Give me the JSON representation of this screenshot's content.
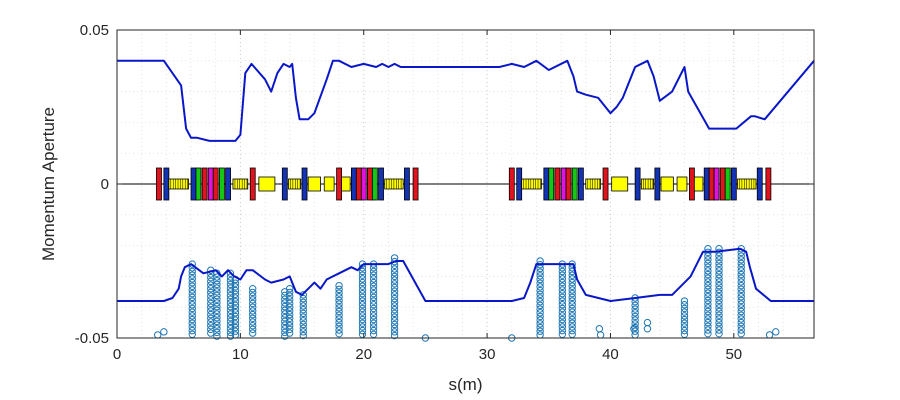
{
  "chart_data": {
    "type": "line",
    "title": "",
    "xlabel": "s(m)",
    "ylabel": "Momentum Aperture",
    "xlim": [
      0,
      56.5
    ],
    "ylim": [
      -0.05,
      0.05
    ],
    "x_ticks": [
      0,
      10,
      20,
      30,
      40,
      50
    ],
    "y_ticks": [
      -0.05,
      0,
      0.05
    ],
    "y_tick_labels": [
      "-0.05",
      "0",
      "0.05"
    ],
    "x_tick_labels": [
      "0",
      "10",
      "20",
      "30",
      "40",
      "50"
    ],
    "grid": "dotted",
    "colors": {
      "aperture_line": "#0a17c8",
      "scatter": "#1f77b4",
      "dipole": "#ffff00",
      "focusing_quad": "#e0141e",
      "defocusing_quad": "#1432b4",
      "sextupole_sf": "#14c814",
      "sextupole_sd": "#dc14dc",
      "zero_line": "#000000"
    },
    "series": [
      {
        "role": "positive-aperture",
        "x": [
          0,
          3.8,
          5.2,
          5.6,
          6.0,
          6.5,
          7.5,
          9.6,
          10.0,
          10.4,
          10.9,
          12.0,
          12.5,
          13.0,
          13.5,
          14.0,
          14.2,
          14.5,
          14.8,
          15.5,
          16.0,
          17.0,
          17.5,
          18.0,
          19.0,
          20.0,
          21.0,
          21.5,
          22.0,
          22.5,
          23.0,
          24.0,
          26.0,
          31.0,
          32.0,
          33.0,
          34.0,
          35.0,
          36.5,
          37.0,
          37.3,
          38.0,
          39.0,
          40.0,
          40.5,
          41.0,
          42.0,
          43.0,
          43.5,
          44.0,
          45.0,
          46.0,
          46.3,
          48.0,
          48.8,
          50.2,
          51.4,
          51.7,
          52.5,
          56.5
        ],
        "y": [
          0.04,
          0.04,
          0.032,
          0.018,
          0.015,
          0.015,
          0.014,
          0.014,
          0.016,
          0.036,
          0.039,
          0.034,
          0.03,
          0.036,
          0.039,
          0.038,
          0.039,
          0.028,
          0.021,
          0.021,
          0.023,
          0.034,
          0.04,
          0.04,
          0.038,
          0.039,
          0.038,
          0.039,
          0.038,
          0.039,
          0.038,
          0.038,
          0.038,
          0.038,
          0.039,
          0.038,
          0.04,
          0.037,
          0.04,
          0.035,
          0.03,
          0.029,
          0.028,
          0.023,
          0.025,
          0.028,
          0.038,
          0.04,
          0.035,
          0.027,
          0.03,
          0.038,
          0.03,
          0.018,
          0.018,
          0.018,
          0.022,
          0.022,
          0.021,
          0.04
        ]
      },
      {
        "role": "negative-aperture",
        "x": [
          0,
          3.8,
          4.5,
          5.0,
          5.2,
          5.5,
          6.0,
          7.0,
          8.0,
          8.5,
          9.0,
          9.5,
          10.0,
          10.5,
          11.0,
          12.0,
          12.5,
          13.5,
          14.0,
          14.5,
          15.0,
          16.0,
          16.5,
          17.0,
          17.5,
          18.0,
          19.0,
          19.5,
          20.0,
          22.0,
          22.6,
          23.2,
          25.0,
          32.0,
          33.0,
          33.5,
          34.0,
          37.0,
          37.3,
          38.0,
          40.0,
          42.0,
          44.0,
          45.0,
          46.5,
          47.0,
          47.5,
          48.5,
          50.5,
          51.0,
          51.3,
          51.8,
          53.0,
          56.5
        ],
        "y": [
          -0.038,
          -0.038,
          -0.037,
          -0.034,
          -0.03,
          -0.027,
          -0.026,
          -0.029,
          -0.028,
          -0.03,
          -0.028,
          -0.03,
          -0.031,
          -0.028,
          -0.028,
          -0.031,
          -0.032,
          -0.031,
          -0.03,
          -0.035,
          -0.036,
          -0.032,
          -0.034,
          -0.031,
          -0.03,
          -0.029,
          -0.027,
          -0.028,
          -0.026,
          -0.026,
          -0.025,
          -0.025,
          -0.038,
          -0.038,
          -0.037,
          -0.032,
          -0.026,
          -0.026,
          -0.031,
          -0.036,
          -0.038,
          -0.037,
          -0.036,
          -0.036,
          -0.03,
          -0.026,
          -0.022,
          -0.022,
          -0.021,
          -0.022,
          -0.027,
          -0.034,
          -0.038,
          -0.038
        ]
      }
    ],
    "scatter": {
      "columns": [
        {
          "x": 6.1,
          "y_top": -0.026
        },
        {
          "x": 7.6,
          "y_top": -0.028
        },
        {
          "x": 8.1,
          "y_top": -0.029
        },
        {
          "x": 9.2,
          "y_top": -0.029
        },
        {
          "x": 9.6,
          "y_top": -0.031
        },
        {
          "x": 11.0,
          "y_top": -0.034
        },
        {
          "x": 13.6,
          "y_top": -0.035
        },
        {
          "x": 14.0,
          "y_top": -0.034
        },
        {
          "x": 15.1,
          "y_top": -0.036
        },
        {
          "x": 18.0,
          "y_top": -0.033
        },
        {
          "x": 19.9,
          "y_top": -0.026
        },
        {
          "x": 20.8,
          "y_top": -0.026
        },
        {
          "x": 22.5,
          "y_top": -0.024
        },
        {
          "x": 34.3,
          "y_top": -0.025
        },
        {
          "x": 36.1,
          "y_top": -0.026
        },
        {
          "x": 36.9,
          "y_top": -0.026
        },
        {
          "x": 42.0,
          "y_top": -0.037
        },
        {
          "x": 46.0,
          "y_top": -0.038
        },
        {
          "x": 47.9,
          "y_top": -0.021
        },
        {
          "x": 48.8,
          "y_top": -0.021
        },
        {
          "x": 50.6,
          "y_top": -0.021
        }
      ],
      "isolated": [
        {
          "x": 3.3,
          "y": -0.049
        },
        {
          "x": 3.8,
          "y": -0.048
        },
        {
          "x": 25.0,
          "y": -0.05
        },
        {
          "x": 32.0,
          "y": -0.05
        },
        {
          "x": 39.1,
          "y": -0.047
        },
        {
          "x": 39.2,
          "y": -0.049
        },
        {
          "x": 41.9,
          "y": -0.047
        },
        {
          "x": 43.0,
          "y": -0.045
        },
        {
          "x": 43.0,
          "y": -0.047
        },
        {
          "x": 52.9,
          "y": -0.049
        },
        {
          "x": 53.4,
          "y": -0.048
        }
      ]
    },
    "lattice": {
      "y_center": 0,
      "half_height": 0.0035,
      "quad_half_height": 0.01,
      "segments": [
        {
          "start": 2.9,
          "end": 53.2,
          "pattern": "mirror"
        }
      ]
    }
  }
}
